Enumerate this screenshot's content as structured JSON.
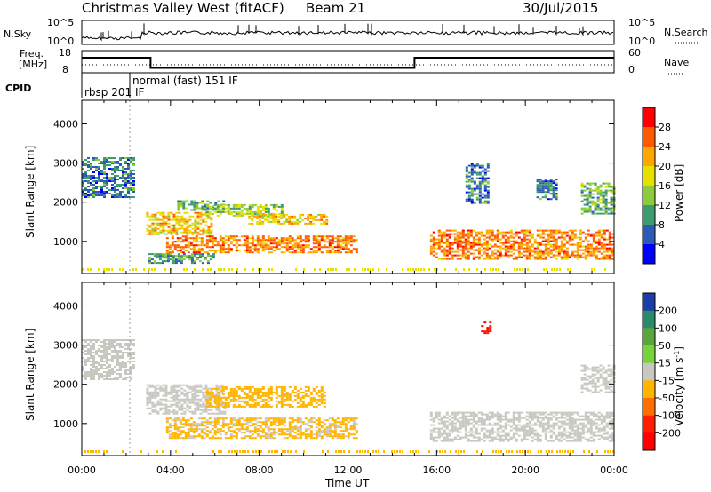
{
  "header": {
    "title": "Christmas Valley West (fitACF)",
    "beam": "Beam 21",
    "date": "30/Jul/2015"
  },
  "top_panels": {
    "nsky_label": "N.Sky",
    "nsky_ticks": [
      "10^5",
      "10^0"
    ],
    "nsky_right_ticks": [
      "10^5",
      "10^0"
    ],
    "nsearch_label": "N.Search",
    "freq_label_1": "Freq.",
    "freq_label_2": "[MHz]",
    "freq_ticks": [
      "18",
      "8"
    ],
    "nave_ticks": [
      "60",
      "0"
    ],
    "nave_label": "Nave",
    "cpid_label": "CPID",
    "cpid_segments": [
      {
        "label": "rbsp  201  IF",
        "start_hour": 0.0,
        "end_hour": 2.2
      },
      {
        "label": "normal  (fast)  151  IF",
        "start_hour": 2.2,
        "end_hour": 24.0
      }
    ],
    "freq_trace_mhz": [
      {
        "from_hour": 0.0,
        "to_hour": 3.1,
        "value": 14.8
      },
      {
        "from_hour": 3.1,
        "to_hour": 15.0,
        "value": 10.2
      },
      {
        "from_hour": 15.0,
        "to_hour": 24.0,
        "value": 14.8
      }
    ]
  },
  "chart_data": [
    {
      "type": "heatmap",
      "quantity": "power",
      "xlabel": "",
      "ylabel": "Slant Range [km]",
      "xlim_hours": [
        0,
        24
      ],
      "ylim_km": [
        180,
        4600
      ],
      "yticks": [
        1000,
        2000,
        3000,
        4000
      ],
      "colorbar_label": "Power [dB]",
      "colorbar_ticks": [
        "28",
        "24",
        "20",
        "16",
        "12",
        "8",
        "4"
      ],
      "colorbar_colors": [
        "#ff0000",
        "#ff5a00",
        "#ffa500",
        "#e6e000",
        "#8ccc3c",
        "#3c9c6e",
        "#2d5ab4",
        "#0000ff"
      ],
      "echo_regions": [
        {
          "x0": 0.0,
          "x1": 2.3,
          "y0": 2150,
          "y1": 3150,
          "level": 8
        },
        {
          "x0": 2.9,
          "x1": 5.8,
          "y0": 1200,
          "y1": 1750,
          "level": 20
        },
        {
          "x0": 4.3,
          "x1": 6.4,
          "y0": 1780,
          "y1": 2050,
          "level": 12
        },
        {
          "x0": 5.6,
          "x1": 9.0,
          "y0": 1650,
          "y1": 1950,
          "level": 14
        },
        {
          "x0": 7.5,
          "x1": 11.0,
          "y0": 1450,
          "y1": 1700,
          "level": 20
        },
        {
          "x0": 3.8,
          "x1": 12.4,
          "y0": 700,
          "y1": 1150,
          "level": 24
        },
        {
          "x0": 3.0,
          "x1": 6.0,
          "y0": 450,
          "y1": 700,
          "level": 10
        },
        {
          "x0": 15.7,
          "x1": 23.9,
          "y0": 550,
          "y1": 1300,
          "level": 24
        },
        {
          "x0": 17.3,
          "x1": 18.3,
          "y0": 2000,
          "y1": 3000,
          "level": 8
        },
        {
          "x0": 20.5,
          "x1": 21.4,
          "y0": 2100,
          "y1": 2600,
          "level": 8
        },
        {
          "x0": 22.5,
          "x1": 24.0,
          "y0": 1700,
          "y1": 2500,
          "level": 12
        }
      ]
    },
    {
      "type": "heatmap",
      "quantity": "velocity",
      "xlabel": "Time UT",
      "ylabel": "Slant Range [km]",
      "xlim_hours": [
        0,
        24
      ],
      "ylim_km": [
        180,
        4600
      ],
      "yticks": [
        1000,
        2000,
        3000,
        4000
      ],
      "xticks": [
        "00:00",
        "04:00",
        "08:00",
        "12:00",
        "16:00",
        "20:00",
        "00:00"
      ],
      "colorbar_label": "Velocity [m s",
      "colorbar_unit_exp": "-1",
      "colorbar_unit_close": "]",
      "colorbar_ticks": [
        "200",
        "100",
        "50",
        "15",
        "-15",
        "-50",
        "-100",
        "-200"
      ],
      "colorbar_colors": [
        "#1c3ca8",
        "#2a8a6a",
        "#5ca43c",
        "#78d23c",
        "#c8c8c0",
        "#ffb400",
        "#ff6e00",
        "#ff1e00",
        "#ff0000"
      ],
      "echo_regions": [
        {
          "x0": 0.0,
          "x1": 2.3,
          "y0": 2150,
          "y1": 3150,
          "level": 0
        },
        {
          "x0": 2.9,
          "x1": 6.4,
          "y0": 1250,
          "y1": 2000,
          "level": 0
        },
        {
          "x0": 5.6,
          "x1": 11.0,
          "y0": 1450,
          "y1": 1950,
          "level": -30
        },
        {
          "x0": 3.8,
          "x1": 12.4,
          "y0": 650,
          "y1": 1150,
          "level": -20
        },
        {
          "x0": 15.7,
          "x1": 23.9,
          "y0": 550,
          "y1": 1300,
          "level": 0
        },
        {
          "x0": 18.0,
          "x1": 18.4,
          "y0": 3300,
          "y1": 3600,
          "level": -200
        },
        {
          "x0": 22.5,
          "x1": 24.0,
          "y0": 1800,
          "y1": 2500,
          "level": 0
        }
      ]
    }
  ]
}
